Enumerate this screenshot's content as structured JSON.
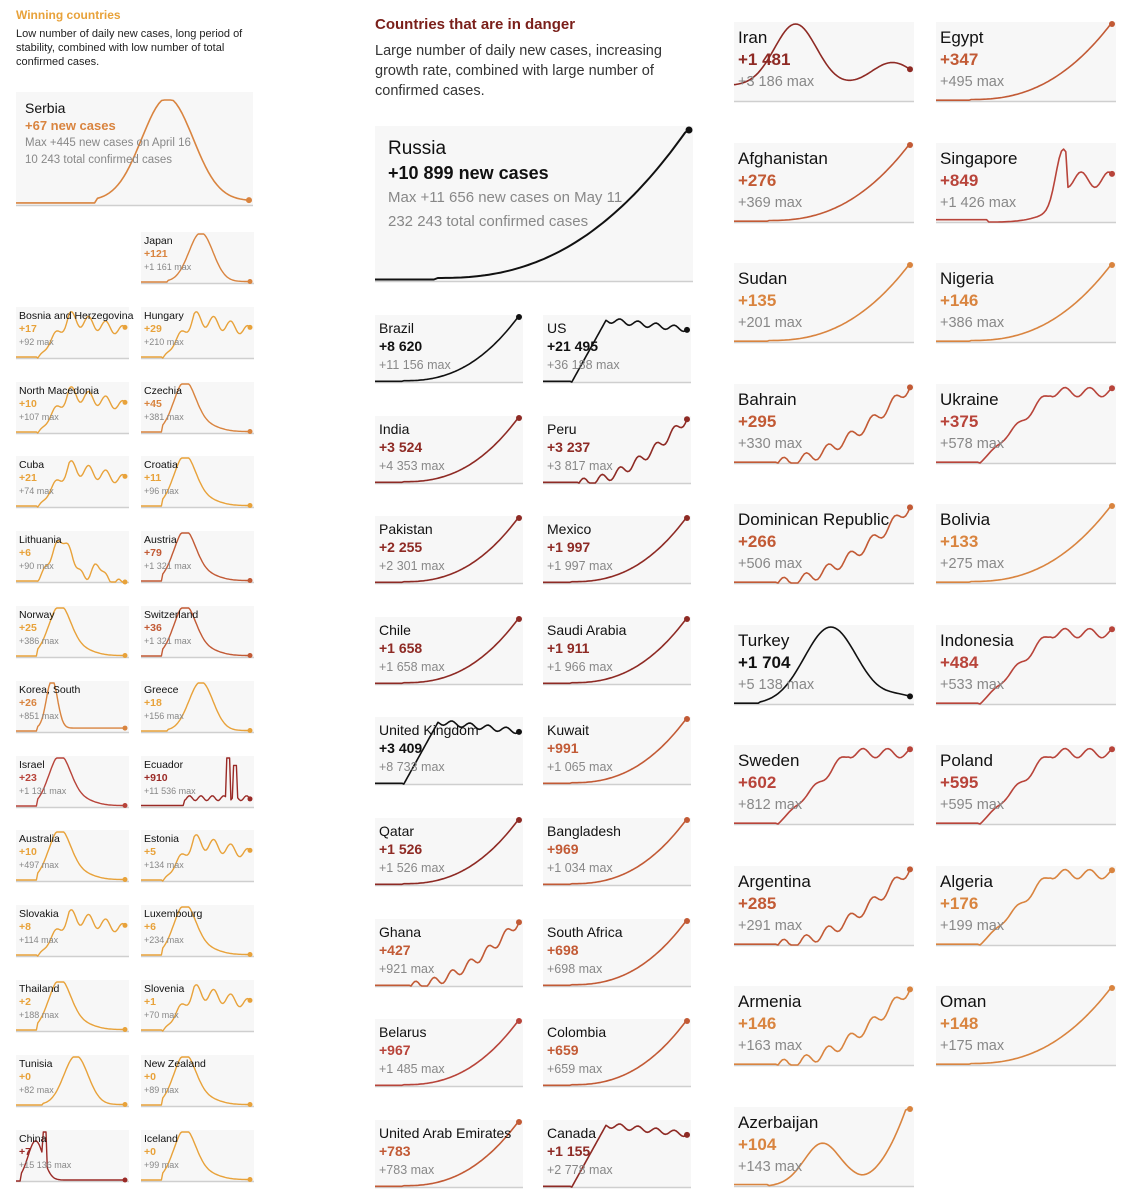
{
  "left_section": {
    "title": "Winning countries",
    "description": "Low number of daily new cases, long period of stability, combined with low number of total confirmed cases."
  },
  "middle_section": {
    "title": "Countries that are in danger",
    "description": "Large number of daily new cases, increasing growth rate, combined with large number of confirmed cases."
  },
  "featured": [
    {
      "country": "Serbia",
      "new_cases": "+67 new cases",
      "max_line": "Max +445 new cases on April 16",
      "total_line": "10 243 total confirmed cases",
      "color": "#d9843f",
      "shape": "peak"
    },
    {
      "country": "Russia",
      "new_cases": "+10 899 new cases",
      "max_line": "Max +11 656 new cases on May 11",
      "total_line": "232 243 total confirmed cases",
      "color": "#111111",
      "shape": "rise"
    }
  ],
  "chart_data": {
    "type": "line",
    "title": "",
    "note": "Small-multiple sparklines of daily new COVID-19 cases per country; values are latest daily new cases and maximum daily new cases.",
    "series": [
      {
        "name": "Serbia",
        "latest": 67,
        "max": 445,
        "group": "winning"
      },
      {
        "name": "Japan",
        "latest": 121,
        "max": 1161,
        "group": "winning"
      },
      {
        "name": "Bosnia and Herzegovina",
        "latest": 17,
        "max": 92,
        "group": "winning"
      },
      {
        "name": "Hungary",
        "latest": 29,
        "max": 210,
        "group": "winning"
      },
      {
        "name": "North Macedonia",
        "latest": 10,
        "max": 107,
        "group": "winning"
      },
      {
        "name": "Czechia",
        "latest": 45,
        "max": 381,
        "group": "winning"
      },
      {
        "name": "Cuba",
        "latest": 21,
        "max": 74,
        "group": "winning"
      },
      {
        "name": "Croatia",
        "latest": 11,
        "max": 96,
        "group": "winning"
      },
      {
        "name": "Lithuania",
        "latest": 6,
        "max": 90,
        "group": "winning"
      },
      {
        "name": "Austria",
        "latest": 79,
        "max": 1321,
        "group": "winning"
      },
      {
        "name": "Norway",
        "latest": 25,
        "max": 386,
        "group": "winning"
      },
      {
        "name": "Switzerland",
        "latest": 36,
        "max": 1321,
        "group": "winning"
      },
      {
        "name": "Korea, South",
        "latest": 26,
        "max": 851,
        "group": "winning"
      },
      {
        "name": "Greece",
        "latest": 18,
        "max": 156,
        "group": "winning"
      },
      {
        "name": "Israel",
        "latest": 23,
        "max": 1131,
        "group": "winning"
      },
      {
        "name": "Ecuador",
        "latest": 910,
        "max": 11536,
        "group": "winning"
      },
      {
        "name": "Australia",
        "latest": 10,
        "max": 497,
        "group": "winning"
      },
      {
        "name": "Estonia",
        "latest": 5,
        "max": 134,
        "group": "winning"
      },
      {
        "name": "Slovakia",
        "latest": 8,
        "max": 114,
        "group": "winning"
      },
      {
        "name": "Luxembourg",
        "latest": 6,
        "max": 234,
        "group": "winning"
      },
      {
        "name": "Thailand",
        "latest": 2,
        "max": 188,
        "group": "winning"
      },
      {
        "name": "Slovenia",
        "latest": 1,
        "max": 70,
        "group": "winning"
      },
      {
        "name": "Tunisia",
        "latest": 0,
        "max": 82,
        "group": "winning"
      },
      {
        "name": "New Zealand",
        "latest": 0,
        "max": 89,
        "group": "winning"
      },
      {
        "name": "China",
        "latest": 7,
        "max": 15136,
        "group": "winning"
      },
      {
        "name": "Iceland",
        "latest": 0,
        "max": 99,
        "group": "winning"
      },
      {
        "name": "Russia",
        "latest": 10899,
        "max": 11656,
        "group": "danger"
      },
      {
        "name": "Brazil",
        "latest": 8620,
        "max": 11156,
        "group": "danger"
      },
      {
        "name": "US",
        "latest": 21495,
        "max": 36188,
        "group": "danger"
      },
      {
        "name": "India",
        "latest": 3524,
        "max": 4353,
        "group": "danger"
      },
      {
        "name": "Peru",
        "latest": 3237,
        "max": 3817,
        "group": "danger"
      },
      {
        "name": "Pakistan",
        "latest": 2255,
        "max": 2301,
        "group": "danger"
      },
      {
        "name": "Mexico",
        "latest": 1997,
        "max": 1997,
        "group": "danger"
      },
      {
        "name": "Chile",
        "latest": 1658,
        "max": 1658,
        "group": "danger"
      },
      {
        "name": "Saudi Arabia",
        "latest": 1911,
        "max": 1966,
        "group": "danger"
      },
      {
        "name": "United Kingdom",
        "latest": 3409,
        "max": 8733,
        "group": "danger"
      },
      {
        "name": "Kuwait",
        "latest": 991,
        "max": 1065,
        "group": "danger"
      },
      {
        "name": "Qatar",
        "latest": 1526,
        "max": 1526,
        "group": "danger"
      },
      {
        "name": "Bangladesh",
        "latest": 969,
        "max": 1034,
        "group": "danger"
      },
      {
        "name": "Ghana",
        "latest": 427,
        "max": 921,
        "group": "danger"
      },
      {
        "name": "South Africa",
        "latest": 698,
        "max": 698,
        "group": "danger"
      },
      {
        "name": "Belarus",
        "latest": 967,
        "max": 1485,
        "group": "danger"
      },
      {
        "name": "Colombia",
        "latest": 659,
        "max": 659,
        "group": "danger"
      },
      {
        "name": "United Arab Emirates",
        "latest": 783,
        "max": 783,
        "group": "danger"
      },
      {
        "name": "Canada",
        "latest": 1155,
        "max": 2778,
        "group": "danger"
      },
      {
        "name": "Iran",
        "latest": 1481,
        "max": 3186,
        "group": "danger"
      },
      {
        "name": "Egypt",
        "latest": 347,
        "max": 495,
        "group": "danger"
      },
      {
        "name": "Afghanistan",
        "latest": 276,
        "max": 369,
        "group": "danger"
      },
      {
        "name": "Singapore",
        "latest": 849,
        "max": 1426,
        "group": "danger"
      },
      {
        "name": "Sudan",
        "latest": 135,
        "max": 201,
        "group": "danger"
      },
      {
        "name": "Nigeria",
        "latest": 146,
        "max": 386,
        "group": "danger"
      },
      {
        "name": "Bahrain",
        "latest": 295,
        "max": 330,
        "group": "danger"
      },
      {
        "name": "Ukraine",
        "latest": 375,
        "max": 578,
        "group": "danger"
      },
      {
        "name": "Dominican Republic",
        "latest": 266,
        "max": 506,
        "group": "danger"
      },
      {
        "name": "Bolivia",
        "latest": 133,
        "max": 275,
        "group": "danger"
      },
      {
        "name": "Turkey",
        "latest": 1704,
        "max": 5138,
        "group": "danger"
      },
      {
        "name": "Indonesia",
        "latest": 484,
        "max": 533,
        "group": "danger"
      },
      {
        "name": "Sweden",
        "latest": 602,
        "max": 812,
        "group": "danger"
      },
      {
        "name": "Poland",
        "latest": 595,
        "max": 595,
        "group": "danger"
      },
      {
        "name": "Argentina",
        "latest": 285,
        "max": 291,
        "group": "danger"
      },
      {
        "name": "Algeria",
        "latest": 176,
        "max": 199,
        "group": "danger"
      },
      {
        "name": "Armenia",
        "latest": 146,
        "max": 163,
        "group": "danger"
      },
      {
        "name": "Oman",
        "latest": 148,
        "max": 175,
        "group": "danger"
      },
      {
        "name": "Azerbaijan",
        "latest": 104,
        "max": 143,
        "group": "danger"
      }
    ]
  },
  "winning": [
    {
      "country": "Japan",
      "value": "+121",
      "max": "+1 161 max",
      "color": "#d9843f",
      "shape": "peakmid"
    },
    {
      "country": "Bosnia and Herzegovina",
      "value": "+17",
      "max": "+92 max",
      "color": "#e8a23a",
      "shape": "plateau"
    },
    {
      "country": "Hungary",
      "value": "+29",
      "max": "+210 max",
      "color": "#e8a23a",
      "shape": "plateau"
    },
    {
      "country": "North Macedonia",
      "value": "+10",
      "max": "+107 max",
      "color": "#e8a23a",
      "shape": "plateau"
    },
    {
      "country": "Czechia",
      "value": "+45",
      "max": "+381 max",
      "color": "#d9843f",
      "shape": "peakearly"
    },
    {
      "country": "Cuba",
      "value": "+21",
      "max": "+74 max",
      "color": "#e8a23a",
      "shape": "plateau"
    },
    {
      "country": "Croatia",
      "value": "+11",
      "max": "+96 max",
      "color": "#e8a23a",
      "shape": "peakearly"
    },
    {
      "country": "Lithuania",
      "value": "+6",
      "max": "+90 max",
      "color": "#e8a23a",
      "shape": "spiky"
    },
    {
      "country": "Austria",
      "value": "+79",
      "max": "+1 321 max",
      "color": "#c25a35",
      "shape": "peakearly"
    },
    {
      "country": "Norway",
      "value": "+25",
      "max": "+386 max",
      "color": "#e8a23a",
      "shape": "peakearly"
    },
    {
      "country": "Switzerland",
      "value": "+36",
      "max": "+1 321 max",
      "color": "#c25a35",
      "shape": "peakearly"
    },
    {
      "country": "Korea, South",
      "value": "+26",
      "max": "+851 max",
      "color": "#d9843f",
      "shape": "spikeearly"
    },
    {
      "country": "Greece",
      "value": "+18",
      "max": "+156 max",
      "color": "#e8a23a",
      "shape": "peakmid"
    },
    {
      "country": "Israel",
      "value": "+23",
      "max": "+1 131 max",
      "color": "#b8443a",
      "shape": "peakearly"
    },
    {
      "country": "Ecuador",
      "value": "+910",
      "max": "+11 536 max",
      "color": "#9a2a26",
      "shape": "spike"
    },
    {
      "country": "Australia",
      "value": "+10",
      "max": "+497 max",
      "color": "#e8a23a",
      "shape": "peakearly"
    },
    {
      "country": "Estonia",
      "value": "+5",
      "max": "+134 max",
      "color": "#e8a23a",
      "shape": "plateau"
    },
    {
      "country": "Slovakia",
      "value": "+8",
      "max": "+114 max",
      "color": "#e8a23a",
      "shape": "plateau"
    },
    {
      "country": "Luxembourg",
      "value": "+6",
      "max": "+234 max",
      "color": "#e8a23a",
      "shape": "peakearly"
    },
    {
      "country": "Thailand",
      "value": "+2",
      "max": "+188 max",
      "color": "#e8a23a",
      "shape": "peakearly"
    },
    {
      "country": "Slovenia",
      "value": "+1",
      "max": "+70 max",
      "color": "#e8a23a",
      "shape": "plateau"
    },
    {
      "country": "Tunisia",
      "value": "+0",
      "max": "+82 max",
      "color": "#e8a23a",
      "shape": "peakmid"
    },
    {
      "country": "New Zealand",
      "value": "+0",
      "max": "+89 max",
      "color": "#e8a23a",
      "shape": "peakearly"
    },
    {
      "country": "China",
      "value": "+7",
      "max": "+15 136 max",
      "color": "#9a2a26",
      "shape": "china"
    },
    {
      "country": "Iceland",
      "value": "+0",
      "max": "+99 max",
      "color": "#e8a23a",
      "shape": "peakearly"
    }
  ],
  "danger": [
    {
      "country": "Brazil",
      "value": "+8 620",
      "max": "+11 156 max",
      "color": "#111111",
      "shape": "rise"
    },
    {
      "country": "US",
      "value": "+21 495",
      "max": "+36 188 max",
      "color": "#111111",
      "shape": "plateauhigh"
    },
    {
      "country": "India",
      "value": "+3 524",
      "max": "+4 353 max",
      "color": "#8e2a24",
      "shape": "rise"
    },
    {
      "country": "Peru",
      "value": "+3 237",
      "max": "+3 817 max",
      "color": "#8e2a24",
      "shape": "risenoisy"
    },
    {
      "country": "Pakistan",
      "value": "+2 255",
      "max": "+2 301 max",
      "color": "#8e2a24",
      "shape": "rise"
    },
    {
      "country": "Mexico",
      "value": "+1 997",
      "max": "+1 997 max",
      "color": "#8e2a24",
      "shape": "rise"
    },
    {
      "country": "Chile",
      "value": "+1 658",
      "max": "+1 658 max",
      "color": "#8e2a24",
      "shape": "rise"
    },
    {
      "country": "Saudi Arabia",
      "value": "+1 911",
      "max": "+1 966 max",
      "color": "#8e2a24",
      "shape": "rise"
    },
    {
      "country": "United Kingdom",
      "value": "+3 409",
      "max": "+8 733 max",
      "color": "#111111",
      "shape": "plateauhigh"
    },
    {
      "country": "Kuwait",
      "value": "+991",
      "max": "+1 065 max",
      "color": "#c25a35",
      "shape": "rise"
    },
    {
      "country": "Qatar",
      "value": "+1 526",
      "max": "+1 526 max",
      "color": "#8e2a24",
      "shape": "rise"
    },
    {
      "country": "Bangladesh",
      "value": "+969",
      "max": "+1 034 max",
      "color": "#c25a35",
      "shape": "rise"
    },
    {
      "country": "Ghana",
      "value": "+427",
      "max": "+921 max",
      "color": "#c25a35",
      "shape": "risenoisy"
    },
    {
      "country": "South Africa",
      "value": "+698",
      "max": "+698 max",
      "color": "#c25a35",
      "shape": "rise"
    },
    {
      "country": "Belarus",
      "value": "+967",
      "max": "+1 485 max",
      "color": "#b8443a",
      "shape": "rise"
    },
    {
      "country": "Colombia",
      "value": "+659",
      "max": "+659 max",
      "color": "#c25a35",
      "shape": "rise"
    },
    {
      "country": "United Arab Emirates",
      "value": "+783",
      "max": "+783 max",
      "color": "#c25a35",
      "shape": "rise"
    },
    {
      "country": "Canada",
      "value": "+1 155",
      "max": "+2 778 max",
      "color": "#8e2a24",
      "shape": "plateauhigh"
    },
    {
      "country": "Iran",
      "value": "+1 481",
      "max": "+3 186 max",
      "color": "#8e2a24",
      "shape": "iran"
    },
    {
      "country": "Egypt",
      "value": "+347",
      "max": "+495 max",
      "color": "#c25a35",
      "shape": "rise"
    },
    {
      "country": "Afghanistan",
      "value": "+276",
      "max": "+369 max",
      "color": "#c25a35",
      "shape": "rise"
    },
    {
      "country": "Singapore",
      "value": "+849",
      "max": "+1 426 max",
      "color": "#b8443a",
      "shape": "singapore"
    },
    {
      "country": "Sudan",
      "value": "+135",
      "max": "+201 max",
      "color": "#d9843f",
      "shape": "rise"
    },
    {
      "country": "Nigeria",
      "value": "+146",
      "max": "+386 max",
      "color": "#d9843f",
      "shape": "rise"
    },
    {
      "country": "Bahrain",
      "value": "+295",
      "max": "+330 max",
      "color": "#c25a35",
      "shape": "risenoisy"
    },
    {
      "country": "Ukraine",
      "value": "+375",
      "max": "+578 max",
      "color": "#b8443a",
      "shape": "riseplateau"
    },
    {
      "country": "Dominican Republic",
      "value": "+266",
      "max": "+506 max",
      "color": "#c25a35",
      "shape": "risenoisy"
    },
    {
      "country": "Bolivia",
      "value": "+133",
      "max": "+275 max",
      "color": "#d9843f",
      "shape": "rise"
    },
    {
      "country": "Turkey",
      "value": "+1 704",
      "max": "+5 138 max",
      "color": "#111111",
      "shape": "turkey"
    },
    {
      "country": "Indonesia",
      "value": "+484",
      "max": "+533 max",
      "color": "#b8443a",
      "shape": "riseplateau"
    },
    {
      "country": "Sweden",
      "value": "+602",
      "max": "+812 max",
      "color": "#b8443a",
      "shape": "riseplateau"
    },
    {
      "country": "Poland",
      "value": "+595",
      "max": "+595 max",
      "color": "#b8443a",
      "shape": "riseplateau"
    },
    {
      "country": "Argentina",
      "value": "+285",
      "max": "+291 max",
      "color": "#c25a35",
      "shape": "risenoisy"
    },
    {
      "country": "Algeria",
      "value": "+176",
      "max": "+199 max",
      "color": "#d9843f",
      "shape": "riseplateau"
    },
    {
      "country": "Armenia",
      "value": "+146",
      "max": "+163 max",
      "color": "#d9843f",
      "shape": "risenoisy"
    },
    {
      "country": "Oman",
      "value": "+148",
      "max": "+175 max",
      "color": "#d9843f",
      "shape": "rise"
    },
    {
      "country": "Azerbaijan",
      "value": "+104",
      "max": "+143 max",
      "color": "#d9843f",
      "shape": "wave"
    }
  ]
}
